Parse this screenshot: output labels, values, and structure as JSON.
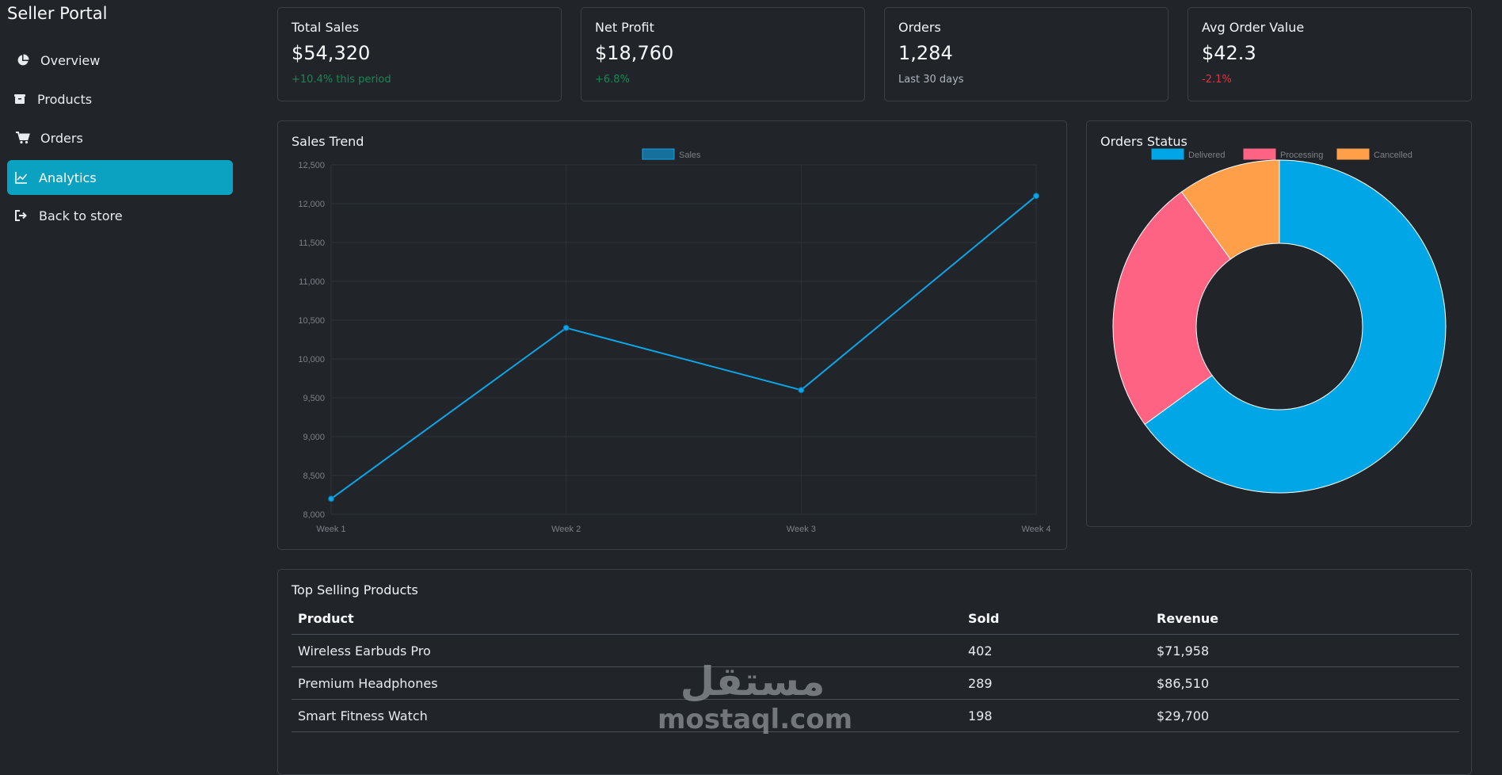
{
  "sidebar": {
    "brand": "Seller Portal",
    "items": [
      {
        "label": "Overview",
        "icon": "pie-chart-icon"
      },
      {
        "label": "Products",
        "icon": "box-icon"
      },
      {
        "label": "Orders",
        "icon": "cart-icon"
      },
      {
        "label": "Analytics",
        "icon": "line-chart-icon",
        "active": true
      },
      {
        "label": "Back to store",
        "icon": "exit-icon"
      }
    ]
  },
  "stats": [
    {
      "title": "Total Sales",
      "value": "$54,320",
      "sub": "+10.4% this period",
      "sub_color": "#198754"
    },
    {
      "title": "Net Profit",
      "value": "$18,760",
      "sub": "+6.8%",
      "sub_color": "#198754"
    },
    {
      "title": "Orders",
      "value": "1,284",
      "sub": "Last 30 days",
      "sub_color": "#adb5bd"
    },
    {
      "title": "Avg Order Value",
      "value": "$42.3",
      "sub": "-2.1%",
      "sub_color": "#dc3545"
    }
  ],
  "sales_trend": {
    "title": "Sales Trend"
  },
  "orders_status": {
    "title": "Orders Status"
  },
  "chart_data": [
    {
      "type": "line",
      "title": "Sales Trend",
      "categories": [
        "Week 1",
        "Week 2",
        "Week 3",
        "Week 4"
      ],
      "series": [
        {
          "name": "Sales",
          "values": [
            8200,
            10400,
            9600,
            12100
          ],
          "color": "#0ea5e9"
        }
      ],
      "ylim": [
        8000,
        12500
      ],
      "yticks": [
        8000,
        8500,
        9000,
        9500,
        10000,
        10500,
        11000,
        11500,
        12000,
        12500
      ],
      "ytick_labels": [
        "8,000",
        "8,500",
        "9,000",
        "9,500",
        "10,000",
        "10,500",
        "11,000",
        "11,500",
        "12,000",
        "12,500"
      ],
      "grid": true,
      "legend": "top"
    },
    {
      "type": "pie",
      "title": "Orders Status",
      "categories": [
        "Delivered",
        "Processing",
        "Cancelled"
      ],
      "values": [
        65,
        25,
        10
      ],
      "colors": [
        "#00a6e6",
        "#ff6384",
        "#ff9f4a"
      ],
      "legend": "top"
    }
  ],
  "top_products": {
    "title": "Top Selling Products",
    "columns": [
      "Product",
      "Sold",
      "Revenue"
    ],
    "rows": [
      [
        "Wireless Earbuds Pro",
        "402",
        "$71,958"
      ],
      [
        "Premium Headphones",
        "289",
        "$86,510"
      ],
      [
        "Smart Fitness Watch",
        "198",
        "$29,700"
      ]
    ]
  },
  "watermark": {
    "arabic": "مستقل",
    "latin": "mostaql.com"
  }
}
